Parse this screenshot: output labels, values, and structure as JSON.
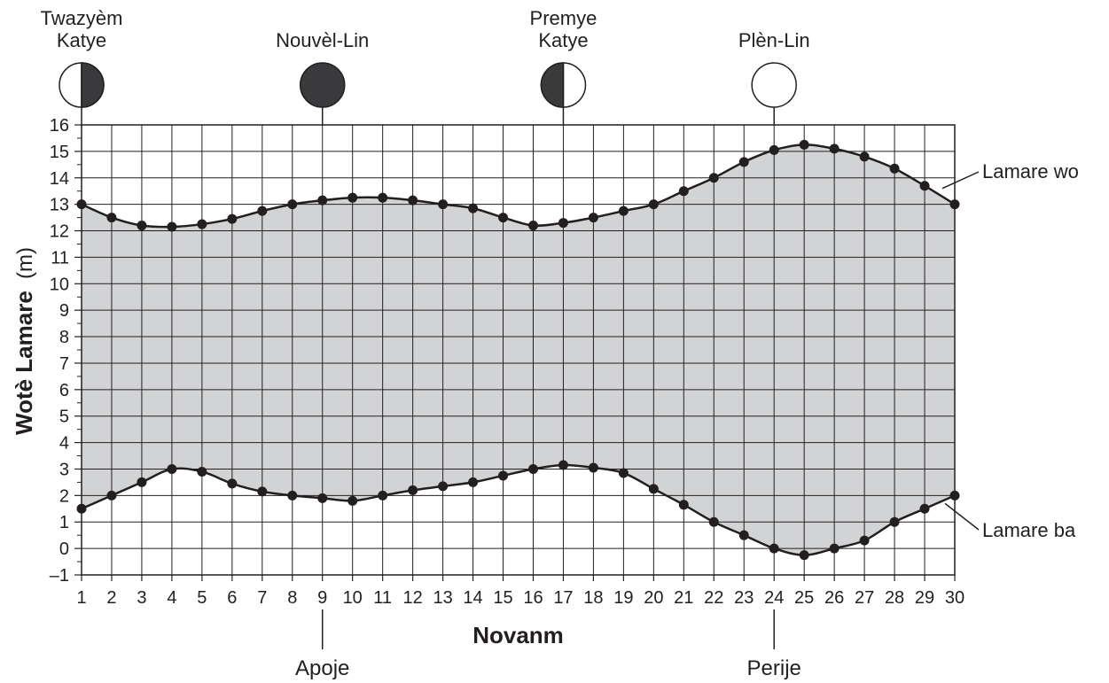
{
  "chart_data": {
    "type": "area",
    "xlabel": "Novanm",
    "ylabel": "Wotè Lamare",
    "ylabel_unit": "(m)",
    "x": [
      1,
      2,
      3,
      4,
      5,
      6,
      7,
      8,
      9,
      10,
      11,
      12,
      13,
      14,
      15,
      16,
      17,
      18,
      19,
      20,
      21,
      22,
      23,
      24,
      25,
      26,
      27,
      28,
      29,
      30
    ],
    "xlim": [
      1,
      30
    ],
    "ylim": [
      -1,
      16
    ],
    "yticks": [
      "16",
      "15",
      "14",
      "13",
      "12",
      "11",
      "10",
      "9",
      "8",
      "7",
      "6",
      "5",
      "4",
      "3",
      "2",
      "1",
      "0",
      "–1"
    ],
    "grid": true,
    "fill_between_series": true,
    "colors": {
      "fill": "#d1d3d4",
      "line": "#231f20",
      "grid": "#231f20"
    },
    "series": [
      {
        "name": "Lamare wo",
        "values": [
          13.0,
          12.5,
          12.2,
          12.15,
          12.25,
          12.45,
          12.75,
          13.0,
          13.15,
          13.25,
          13.25,
          13.15,
          13.0,
          12.85,
          12.5,
          12.2,
          12.3,
          12.5,
          12.75,
          13.0,
          13.5,
          14.0,
          14.6,
          15.05,
          15.25,
          15.1,
          14.8,
          14.35,
          13.7,
          13.0
        ]
      },
      {
        "name": "Lamare ba",
        "values": [
          1.5,
          2.0,
          2.5,
          3.0,
          2.9,
          2.45,
          2.15,
          2.0,
          1.9,
          1.8,
          2.0,
          2.2,
          2.35,
          2.5,
          2.75,
          3.0,
          3.15,
          3.05,
          2.85,
          2.25,
          1.65,
          1.0,
          0.5,
          0.0,
          -0.25,
          0.0,
          0.3,
          1.0,
          1.5,
          2.0
        ]
      }
    ],
    "moon_phases": [
      {
        "label_lines": [
          "Twazyèm",
          "Katye"
        ],
        "day": 1,
        "icon": "last-quarter-moon-icon"
      },
      {
        "label_lines": [
          "Nouvèl-Lin"
        ],
        "day": 9,
        "icon": "new-moon-icon"
      },
      {
        "label_lines": [
          "Premye",
          "Katye"
        ],
        "day": 17,
        "icon": "first-quarter-moon-icon"
      },
      {
        "label_lines": [
          "Plèn-Lin"
        ],
        "day": 24,
        "icon": "full-moon-icon"
      }
    ],
    "events": [
      {
        "label": "Apoje",
        "day": 9
      },
      {
        "label": "Perije",
        "day": 24
      }
    ]
  }
}
